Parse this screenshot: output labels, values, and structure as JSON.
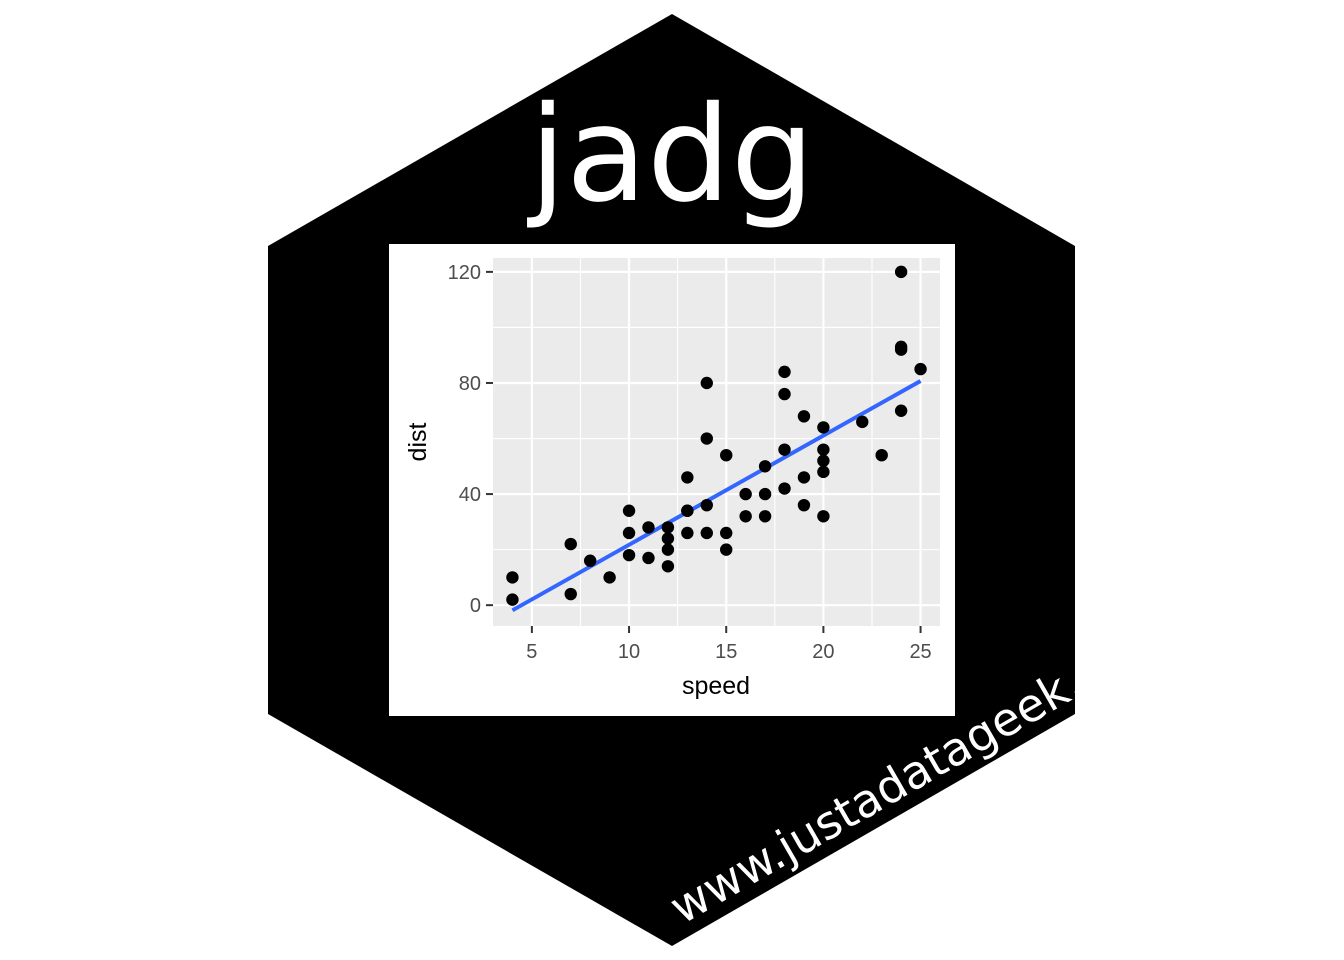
{
  "sticker": {
    "title": "jadg",
    "url": "www.justadatageek.",
    "hex_color": "#000000",
    "title_color": "#ffffff",
    "url_color": "#ffffff"
  },
  "chart_data": {
    "type": "scatter",
    "xlabel": "speed",
    "ylabel": "dist",
    "xlim": [
      3,
      26
    ],
    "ylim": [
      -7.5,
      125
    ],
    "x_ticks": [
      5,
      10,
      15,
      20,
      25
    ],
    "y_ticks": [
      0,
      40,
      80,
      120
    ],
    "grid": true,
    "panel_color": "#ebebeb",
    "point_color": "#000000",
    "points": [
      [
        4,
        2
      ],
      [
        4,
        10
      ],
      [
        7,
        4
      ],
      [
        7,
        22
      ],
      [
        8,
        16
      ],
      [
        9,
        10
      ],
      [
        10,
        18
      ],
      [
        10,
        26
      ],
      [
        10,
        34
      ],
      [
        11,
        17
      ],
      [
        11,
        28
      ],
      [
        12,
        14
      ],
      [
        12,
        20
      ],
      [
        12,
        24
      ],
      [
        12,
        28
      ],
      [
        13,
        26
      ],
      [
        13,
        34
      ],
      [
        13,
        34
      ],
      [
        13,
        46
      ],
      [
        14,
        26
      ],
      [
        14,
        36
      ],
      [
        14,
        60
      ],
      [
        14,
        80
      ],
      [
        15,
        20
      ],
      [
        15,
        26
      ],
      [
        15,
        54
      ],
      [
        16,
        32
      ],
      [
        16,
        40
      ],
      [
        17,
        32
      ],
      [
        17,
        40
      ],
      [
        17,
        50
      ],
      [
        18,
        42
      ],
      [
        18,
        56
      ],
      [
        18,
        76
      ],
      [
        18,
        84
      ],
      [
        19,
        36
      ],
      [
        19,
        46
      ],
      [
        19,
        68
      ],
      [
        20,
        32
      ],
      [
        20,
        48
      ],
      [
        20,
        52
      ],
      [
        20,
        56
      ],
      [
        20,
        64
      ],
      [
        22,
        66
      ],
      [
        23,
        54
      ],
      [
        24,
        70
      ],
      [
        24,
        92
      ],
      [
        24,
        93
      ],
      [
        24,
        120
      ],
      [
        25,
        85
      ]
    ],
    "fit_line": {
      "type": "linear",
      "color": "#3366ff",
      "x": [
        4,
        25
      ],
      "y": [
        -1.85,
        80.73
      ]
    }
  }
}
